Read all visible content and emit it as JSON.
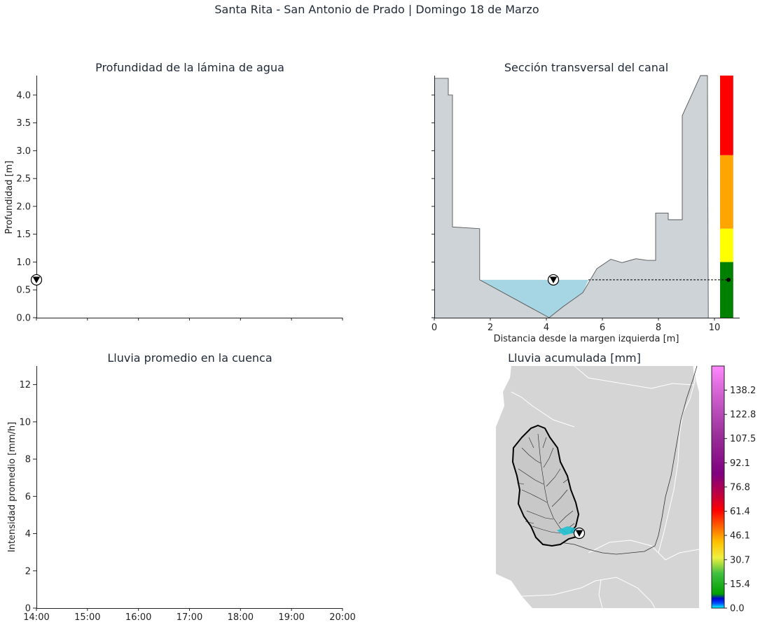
{
  "suptitle": "Santa Rita - San Antonio de Prado | Domingo 18 de Marzo",
  "chart_data": [
    {
      "id": "depth",
      "type": "line",
      "title": "Profundidad de la lámina de agua",
      "xlabel": "",
      "ylabel": "Profundidad [m]",
      "ylim": [
        0,
        4.35
      ],
      "yticks": [
        0.0,
        0.5,
        1.0,
        1.5,
        2.0,
        2.5,
        3.0,
        3.5,
        4.0
      ],
      "yticklabels": [
        "0.0",
        "0.5",
        "1.0",
        "1.5",
        "2.0",
        "2.5",
        "3.0",
        "3.5",
        "4.0"
      ],
      "xlim": [
        0,
        6
      ],
      "xticks": [
        0,
        1,
        2,
        3,
        4,
        5,
        6
      ],
      "xticklabels": [
        "",
        "",
        "",
        "",
        "",
        "",
        ""
      ],
      "marker": {
        "x": 0,
        "y": 0.68,
        "symbol": "water-level-triangle-icon"
      },
      "series": []
    },
    {
      "id": "section",
      "type": "area",
      "title": "Sección transversal del canal",
      "xlabel": "Distancia desde la margen izquierda [m]",
      "ylabel": "",
      "xlim": [
        0,
        10.9
      ],
      "ylim": [
        0,
        4.35
      ],
      "xticks": [
        0,
        2,
        4,
        6,
        8,
        10
      ],
      "xticklabels": [
        "0",
        "2",
        "4",
        "6",
        "8",
        "10"
      ],
      "yticks": [
        0.0,
        0.5,
        1.0,
        1.5,
        2.0,
        2.5,
        3.0,
        3.5,
        4.0
      ],
      "profile": [
        [
          0,
          4.3
        ],
        [
          0.5,
          4.3
        ],
        [
          0.5,
          4.0
        ],
        [
          0.65,
          4.0
        ],
        [
          0.65,
          1.63
        ],
        [
          1.3,
          1.61
        ],
        [
          1.62,
          1.6
        ],
        [
          1.62,
          0.68
        ],
        [
          4.1,
          0.0
        ],
        [
          4.6,
          0.2
        ],
        [
          5.3,
          0.45
        ],
        [
          5.8,
          0.88
        ],
        [
          6.3,
          1.05
        ],
        [
          6.7,
          0.99
        ],
        [
          7.2,
          1.06
        ],
        [
          7.6,
          1.03
        ],
        [
          7.9,
          1.03
        ],
        [
          7.9,
          1.88
        ],
        [
          8.35,
          1.88
        ],
        [
          8.35,
          1.76
        ],
        [
          8.85,
          1.76
        ],
        [
          8.85,
          3.63
        ],
        [
          9.5,
          4.35
        ],
        [
          9.75,
          4.35
        ],
        [
          9.78,
          0.0
        ]
      ],
      "water_level": 0.68,
      "water_extent": [
        1.62,
        5.5
      ],
      "marker": {
        "x": 4.25,
        "y": 0.68,
        "symbol": "water-level-triangle-icon"
      },
      "dashed_line": {
        "x": [
          5.5,
          10.5
        ],
        "y": 0.68
      },
      "level_point": {
        "x": 10.5,
        "y": 0.68
      },
      "alert_bar": [
        {
          "from": 0.0,
          "to": 1.0,
          "color": "#008000"
        },
        {
          "from": 1.0,
          "to": 1.6,
          "color": "#ffff00"
        },
        {
          "from": 1.6,
          "to": 2.92,
          "color": "#ffa500"
        },
        {
          "from": 2.92,
          "to": 4.35,
          "color": "#ff0000"
        }
      ],
      "colors": {
        "terrain": "#cdd3d6",
        "water": "#a6d5e3"
      }
    },
    {
      "id": "rain",
      "type": "bar",
      "title": "Lluvia promedio en la cuenca",
      "xlabel": "",
      "ylabel": "Intensidad promedio [mm/h]",
      "ylim": [
        0,
        13
      ],
      "yticks": [
        0,
        2,
        4,
        6,
        8,
        10,
        12
      ],
      "yticklabels": [
        "0",
        "2",
        "4",
        "6",
        "8",
        "10",
        "12"
      ],
      "xlim": [
        0,
        6
      ],
      "xticks": [
        0,
        1,
        2,
        3,
        4,
        5,
        6
      ],
      "xticklabels": [
        "14:00",
        "15:00",
        "16:00",
        "17:00",
        "18:00",
        "19:00",
        "20:00"
      ],
      "series": []
    },
    {
      "id": "map",
      "type": "heatmap",
      "title": "Lluvia acumulada [mm]",
      "colorbar": {
        "ticks": [
          "0.0",
          "15.4",
          "30.7",
          "46.1",
          "61.4",
          "76.8",
          "92.1",
          "107.5",
          "122.8",
          "138.2"
        ],
        "values": [
          0.0,
          15.4,
          30.7,
          46.1,
          61.4,
          76.8,
          92.1,
          107.5,
          122.8,
          138.2
        ],
        "max": 153.5,
        "stops": [
          {
            "v": 0.0,
            "c": "#00ffff"
          },
          {
            "v": 3.0,
            "c": "#0050ff"
          },
          {
            "v": 6.0,
            "c": "#0000d0"
          },
          {
            "v": 9.0,
            "c": "#00a000"
          },
          {
            "v": 22.0,
            "c": "#40c040"
          },
          {
            "v": 32.0,
            "c": "#f0f040"
          },
          {
            "v": 42.0,
            "c": "#ffc000"
          },
          {
            "v": 52.0,
            "c": "#ff6000"
          },
          {
            "v": 62.0,
            "c": "#ff0000"
          },
          {
            "v": 72.0,
            "c": "#c00040"
          },
          {
            "v": 85.0,
            "c": "#800080"
          },
          {
            "v": 110.0,
            "c": "#9b309b"
          },
          {
            "v": 135.0,
            "c": "#d060d0"
          },
          {
            "v": 153.5,
            "c": "#ff88ff"
          }
        ]
      },
      "colors": {
        "background": "#d5d5d5",
        "boundaries": "#ffffff",
        "basin": "#000000"
      },
      "marker": {
        "symbol": "station-triangle-icon"
      }
    }
  ]
}
